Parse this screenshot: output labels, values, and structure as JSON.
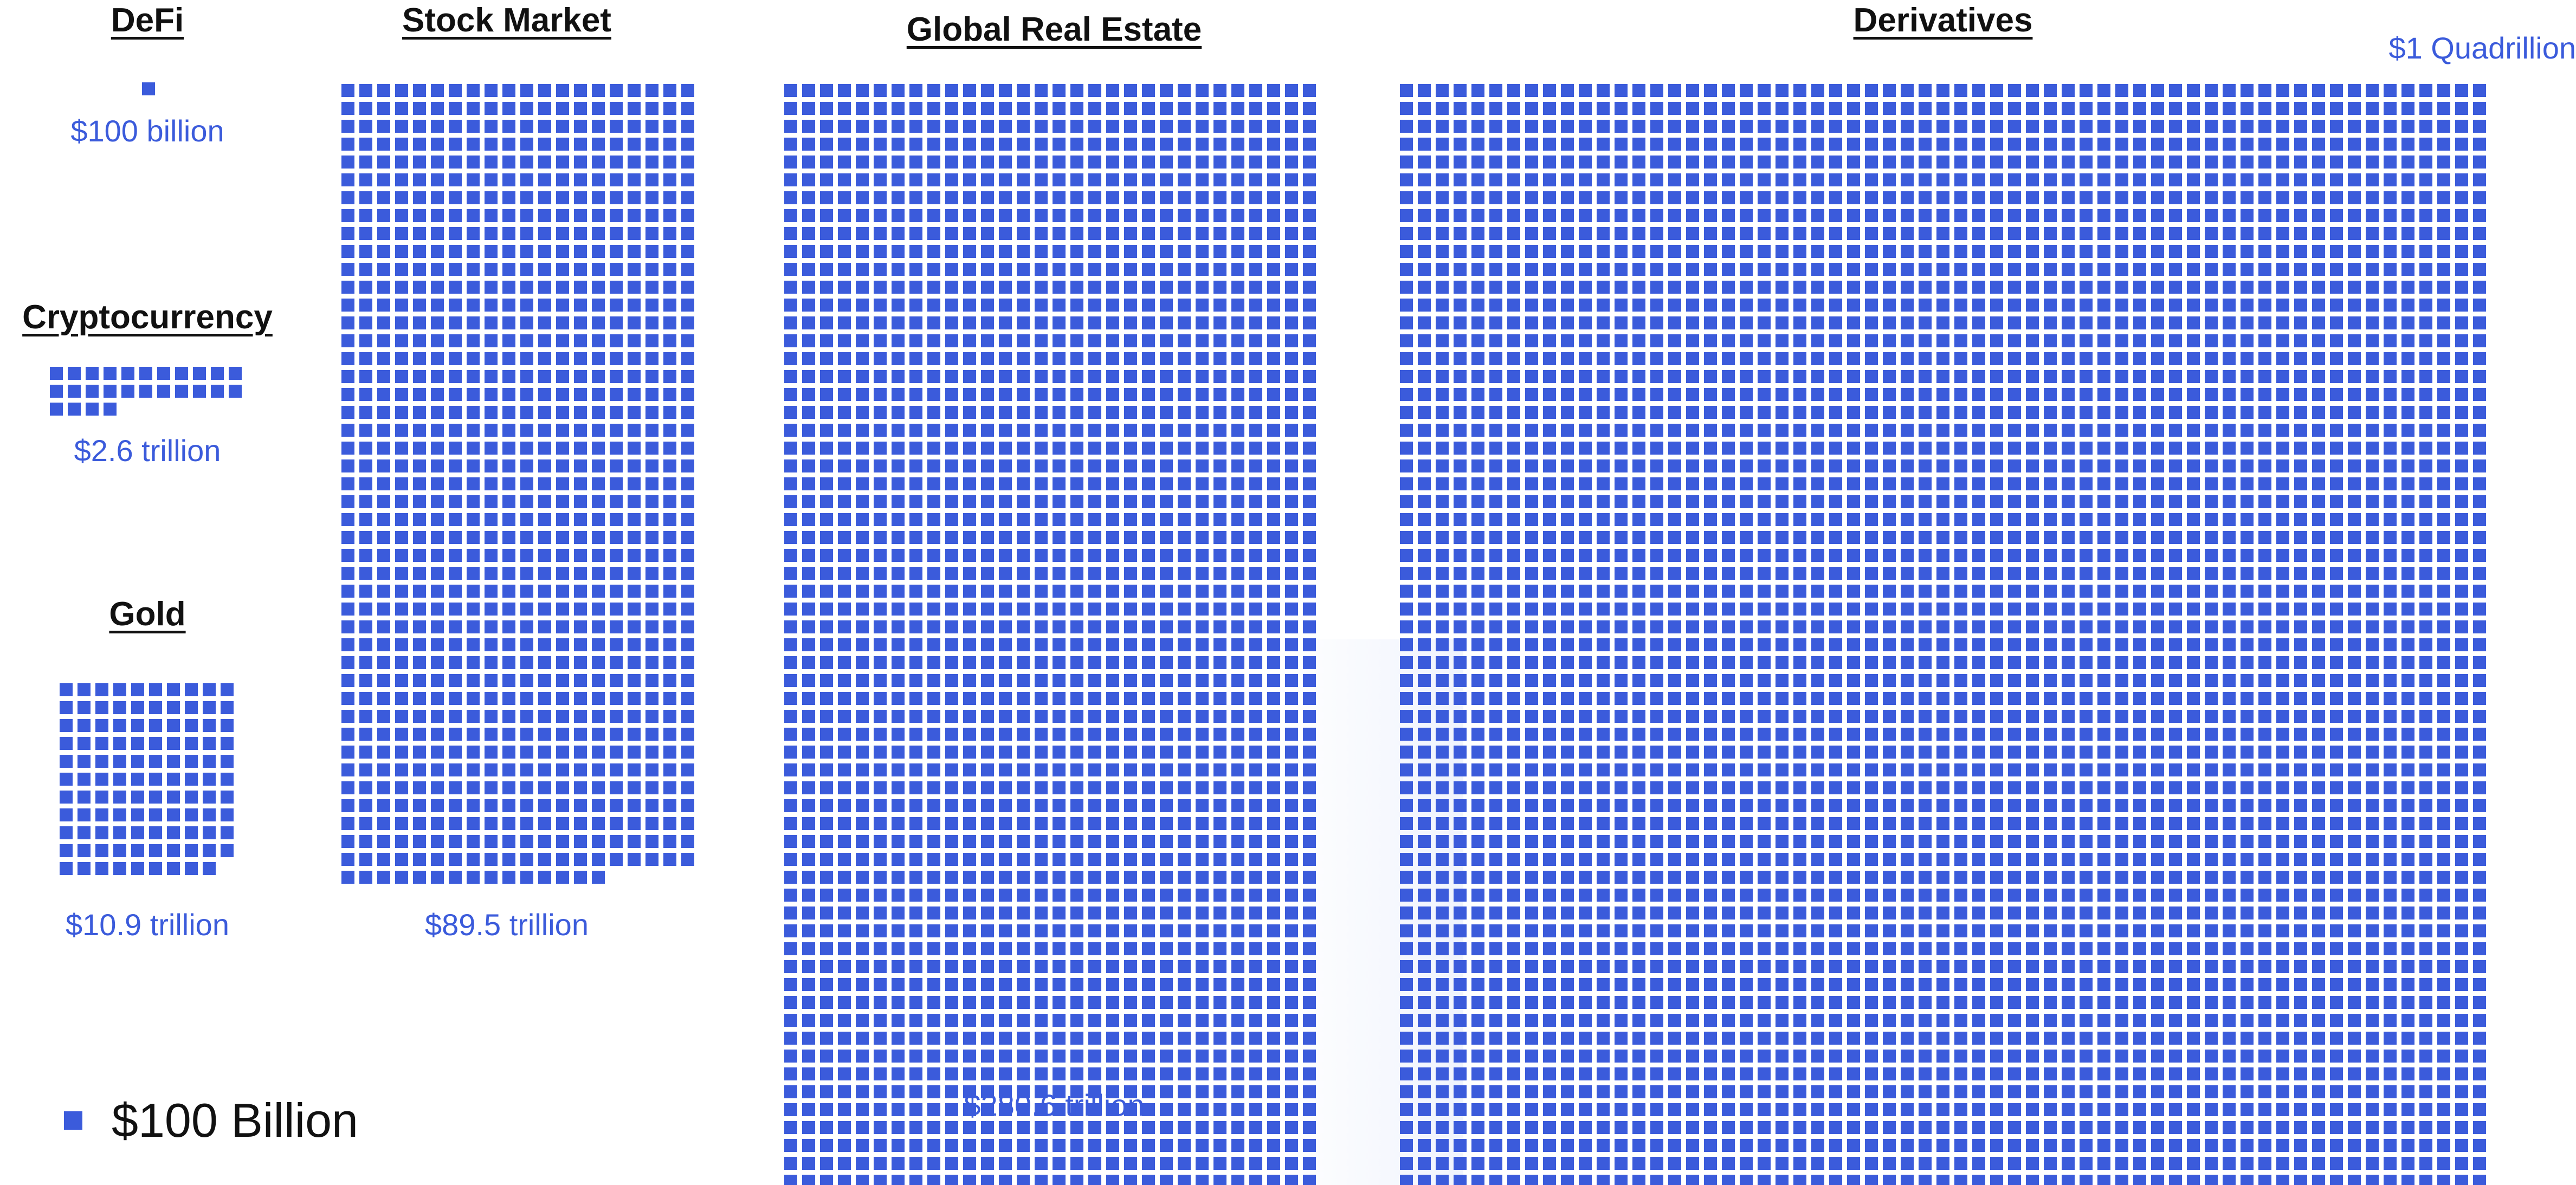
{
  "colors": {
    "square": "#3B5BDB",
    "value_text": "#3B5BDB",
    "title_text": "#111111"
  },
  "legend": {
    "label": "$100 Billion",
    "icon": "blue-square-unit"
  },
  "chart_data": [
    {
      "type": "waffle",
      "title": "DeFi",
      "value_label": "$100 billion",
      "value": 100,
      "units": 1,
      "unit": "billion USD"
    },
    {
      "type": "waffle",
      "title": "Cryptocurrency",
      "value_label": "$2.6 trillion",
      "value": 2600,
      "units": 26,
      "unit": "billion USD"
    },
    {
      "type": "waffle",
      "title": "Gold",
      "value_label": "$10.9 trillion",
      "value": 10900,
      "units": 109,
      "unit": "billion USD"
    },
    {
      "type": "waffle",
      "title": "Stock Market",
      "value_label": "$89.5 trillion",
      "value": 89500,
      "units": 895,
      "unit": "billion USD"
    },
    {
      "type": "waffle",
      "title": "Global Real Estate",
      "value_label": "$280.6 trillion",
      "value": 280600,
      "units": 2806,
      "unit": "billion USD"
    },
    {
      "type": "waffle",
      "title": "Derivatives",
      "value_label": "$1 Quadrillion",
      "value": 1000000,
      "units": 10000,
      "unit": "billion USD"
    }
  ]
}
